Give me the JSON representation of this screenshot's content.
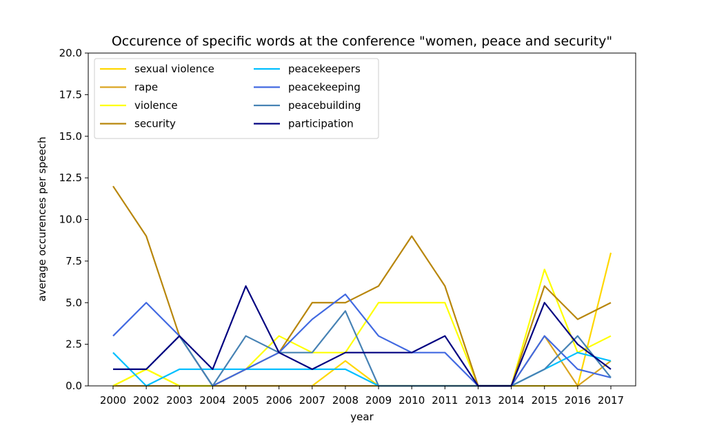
{
  "chart_data": {
    "type": "line",
    "title": "Occurence of specific words at the conference \"women, peace and security\"",
    "xlabel": "year",
    "ylabel": "average occurences per speech",
    "ylim": [
      0,
      20
    ],
    "yticks": [
      "0.0",
      "2.5",
      "5.0",
      "7.5",
      "10.0",
      "12.5",
      "15.0",
      "17.5",
      "20.0"
    ],
    "categories": [
      "2000",
      "2002",
      "2003",
      "2004",
      "2005",
      "2006",
      "2007",
      "2008",
      "2009",
      "2010",
      "2011",
      "2013",
      "2014",
      "2015",
      "2016",
      "2017"
    ],
    "grid": false,
    "legend_position": "top-left",
    "series": [
      {
        "name": "sexual violence",
        "color": "#FFD700",
        "values": [
          0,
          1,
          0,
          0,
          0,
          0,
          0,
          1.5,
          0,
          0,
          0,
          0,
          0,
          0,
          0,
          8
        ]
      },
      {
        "name": "rape",
        "color": "#DAA520",
        "values": [
          0,
          0,
          0,
          0,
          0,
          0,
          0,
          0,
          0,
          0,
          0,
          0,
          0,
          3,
          0,
          1.5
        ]
      },
      {
        "name": "violence",
        "color": "#FFFF00",
        "values": [
          0,
          1,
          0,
          0,
          1,
          3,
          2,
          2,
          5,
          5,
          5,
          0,
          0,
          7,
          2,
          3
        ]
      },
      {
        "name": "security",
        "color": "#B8860B",
        "values": [
          12,
          9,
          3,
          0,
          1,
          2,
          5,
          5,
          6,
          9,
          6,
          0,
          0,
          6,
          4,
          5
        ]
      },
      {
        "name": "peacekeepers",
        "color": "#00BFFF",
        "values": [
          2,
          0,
          1,
          1,
          1,
          1,
          1,
          1,
          0,
          0,
          0,
          0,
          0,
          1,
          2,
          1.5
        ]
      },
      {
        "name": "peacekeeping",
        "color": "#4169E1",
        "values": [
          3,
          5,
          3,
          0,
          1,
          2,
          4,
          5.5,
          3,
          2,
          2,
          0,
          0,
          3,
          1,
          0.5
        ]
      },
      {
        "name": "peacebuilding",
        "color": "#4682B4",
        "values": [
          1,
          1,
          3,
          0,
          3,
          2,
          2,
          4.5,
          0,
          0,
          0,
          0,
          0,
          1,
          3,
          0.5
        ]
      },
      {
        "name": "participation",
        "color": "#000080",
        "values": [
          1,
          1,
          3,
          1,
          6,
          2,
          1,
          2,
          2,
          2,
          3,
          0,
          0,
          5,
          2.5,
          1
        ]
      }
    ]
  }
}
